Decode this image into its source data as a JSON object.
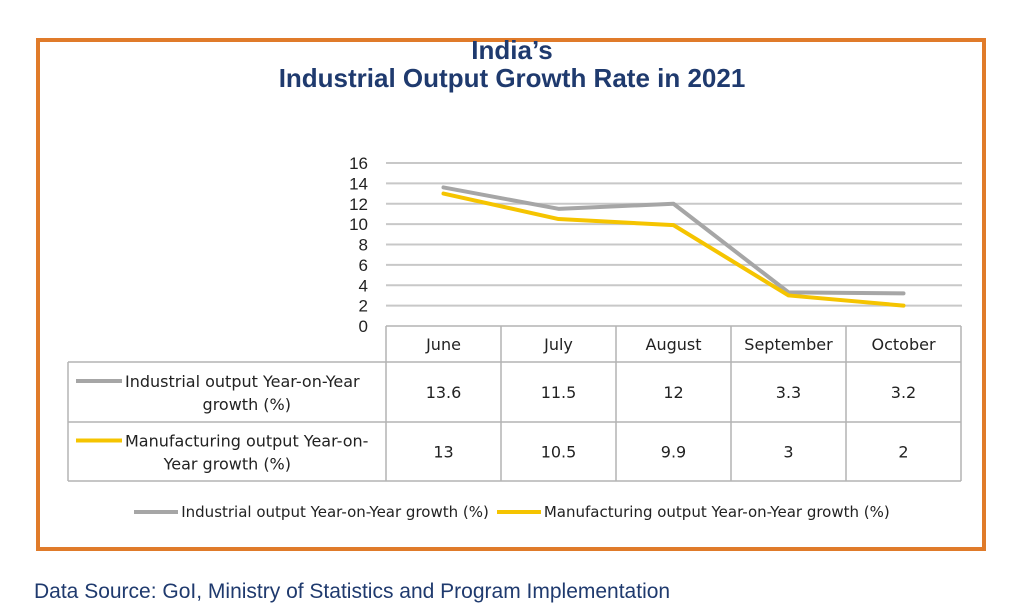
{
  "title_lines": [
    "India’s",
    "Industrial Output Growth Rate in 2021"
  ],
  "source": "Data Source: GoI, Ministry of Statistics and Program Implementation",
  "chart_data": {
    "type": "line",
    "title": "India’s Industrial Output Growth Rate in 2021",
    "categories": [
      "June",
      "July",
      "August",
      "September",
      "October"
    ],
    "ylim": [
      0,
      16
    ],
    "yticks": [
      0,
      2,
      4,
      6,
      8,
      10,
      12,
      14,
      16
    ],
    "grid": true,
    "legend_position": "bottom",
    "data_table": true,
    "series": [
      {
        "name": "Industrial output Year-on-Year growth (%)",
        "table_label": [
          "Industrial output Year-on-Year",
          "growth (%)"
        ],
        "color": "#a6a6a6",
        "values": [
          13.6,
          11.5,
          12,
          3.3,
          3.2
        ],
        "value_labels": [
          "13.6",
          "11.5",
          "12",
          "3.3",
          "3.2"
        ]
      },
      {
        "name": "Manufacturing output Year-on-Year growth (%)",
        "table_label": [
          "Manufacturing output Year-on-",
          "Year growth (%)"
        ],
        "color": "#f5c400",
        "values": [
          13,
          10.5,
          9.9,
          3,
          2
        ],
        "value_labels": [
          "13",
          "10.5",
          "9.9",
          "3",
          "2"
        ]
      }
    ]
  }
}
